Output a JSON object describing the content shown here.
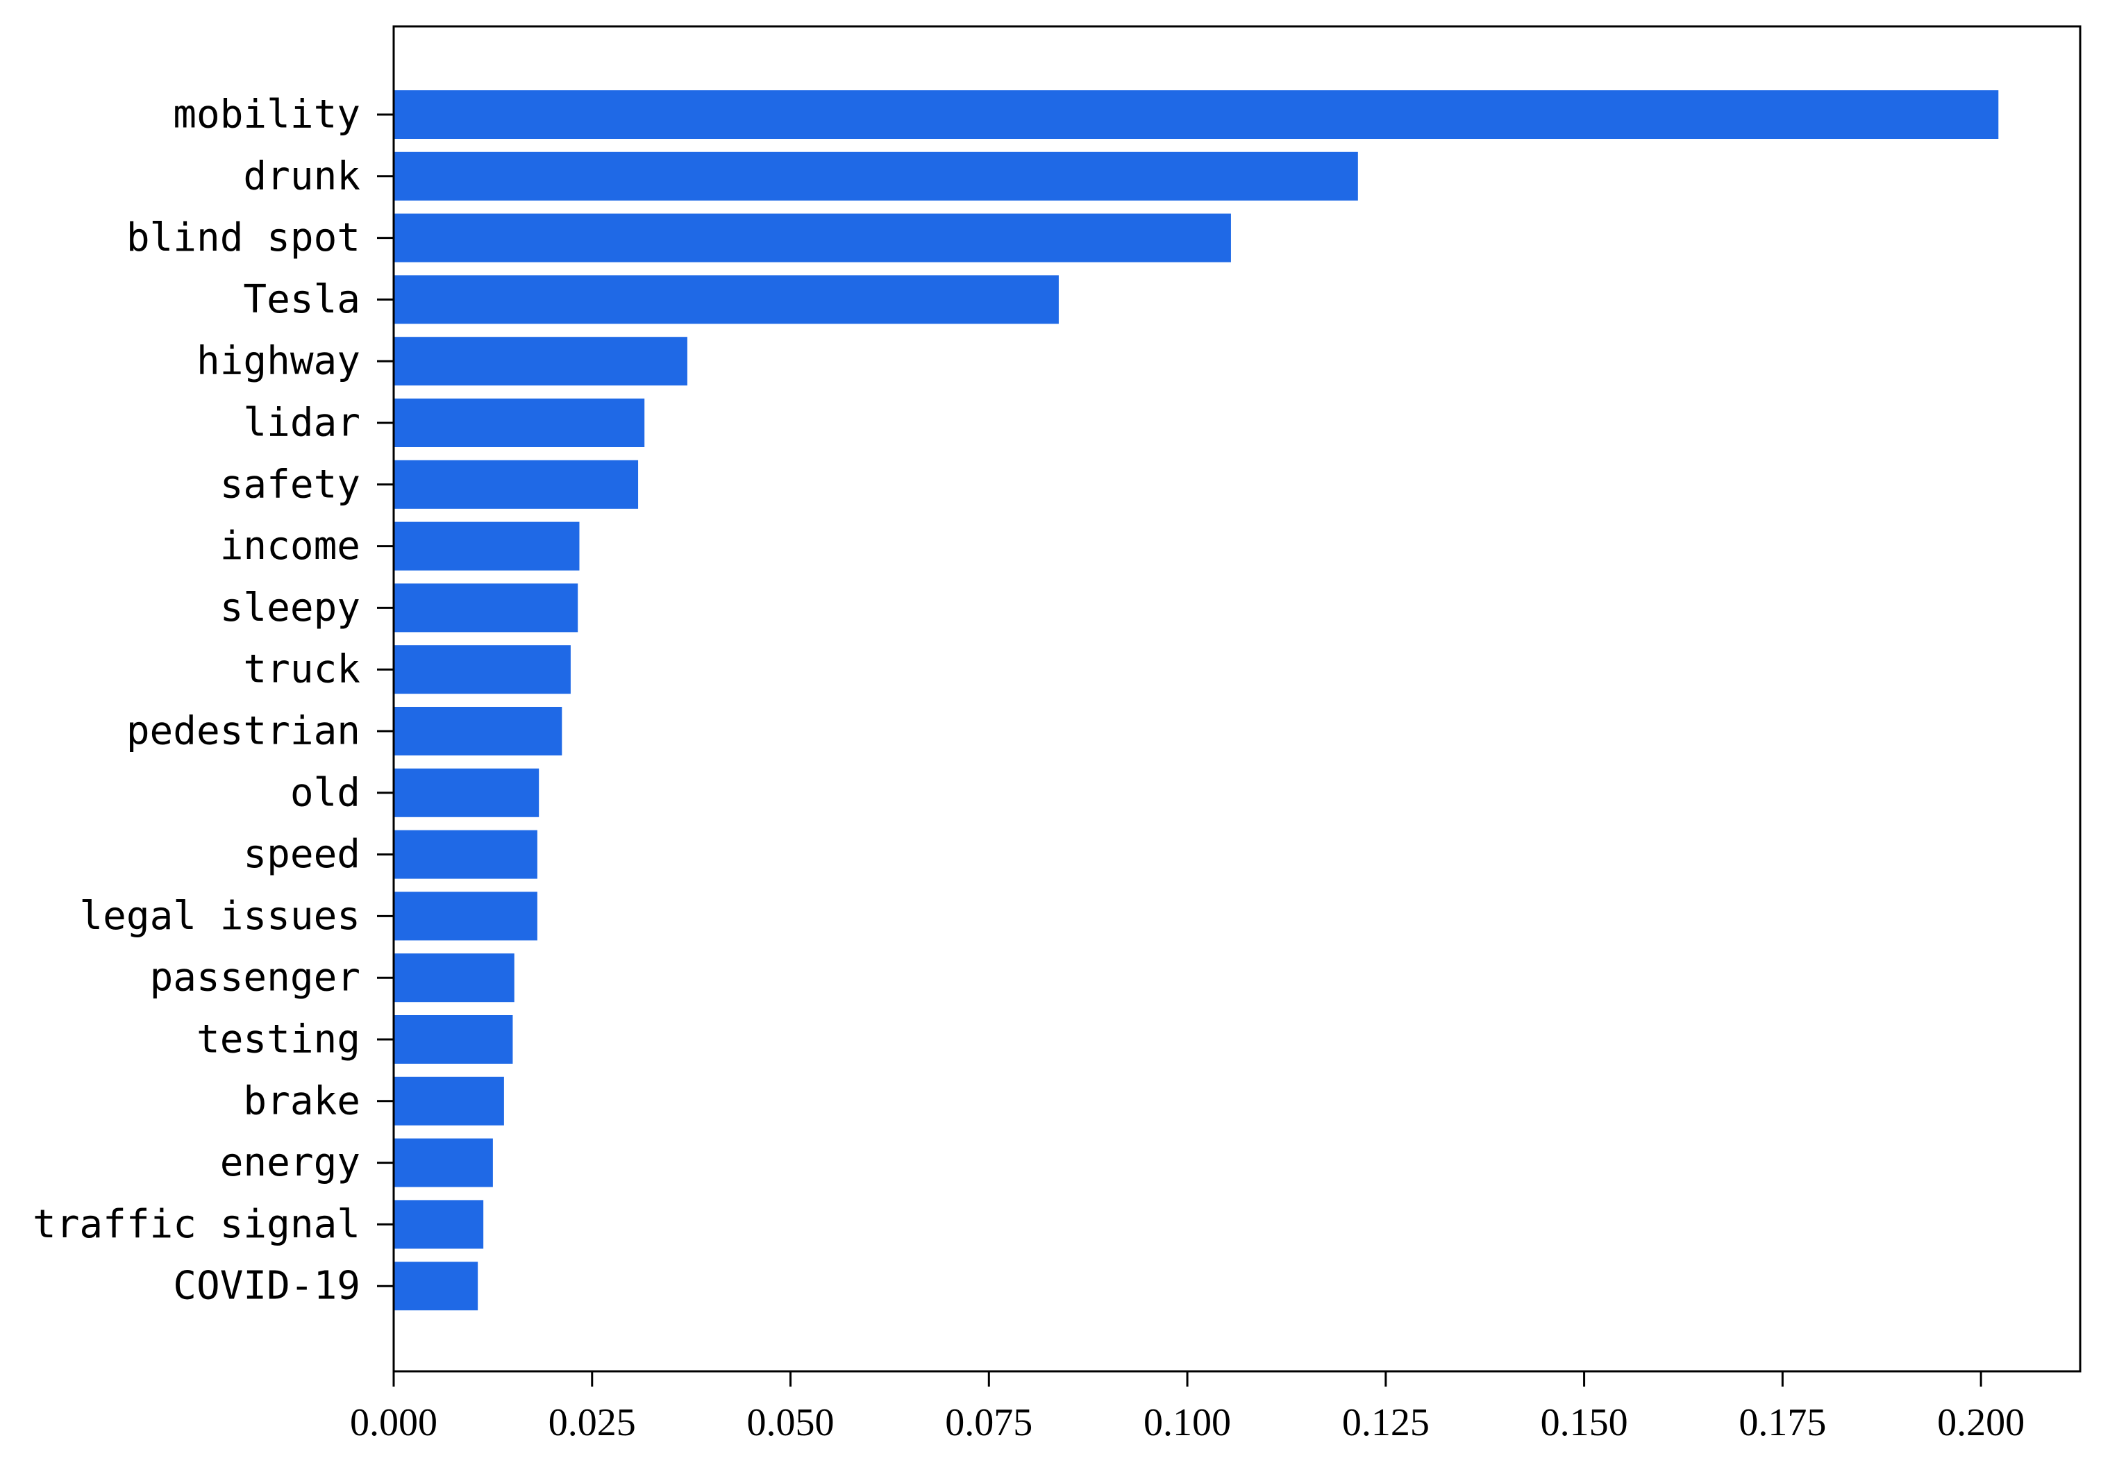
{
  "chart_data": {
    "type": "bar",
    "orientation": "horizontal",
    "title": "",
    "xlabel": "",
    "ylabel": "",
    "xlim": [
      0,
      0.2125
    ],
    "grid": false,
    "bar_color": "#1f69e6",
    "categories": [
      "mobility",
      "drunk",
      "blind spot",
      "Tesla",
      "highway",
      "lidar",
      "safety",
      "income",
      "sleepy",
      "truck",
      "pedestrian",
      "old",
      "speed",
      "legal issues",
      "passenger",
      "testing",
      "brake",
      "energy",
      "traffic signal",
      "COVID-19"
    ],
    "values": [
      0.2022,
      0.1215,
      0.1055,
      0.0838,
      0.037,
      0.0316,
      0.0308,
      0.0234,
      0.0232,
      0.0223,
      0.0212,
      0.0183,
      0.0181,
      0.0181,
      0.0152,
      0.015,
      0.0139,
      0.0125,
      0.0113,
      0.0106
    ],
    "xticks": [
      0.0,
      0.025,
      0.05,
      0.075,
      0.1,
      0.125,
      0.15,
      0.175,
      0.2
    ],
    "xtick_labels": [
      "0.000",
      "0.025",
      "0.050",
      "0.075",
      "0.100",
      "0.125",
      "0.150",
      "0.175",
      "0.200"
    ]
  }
}
